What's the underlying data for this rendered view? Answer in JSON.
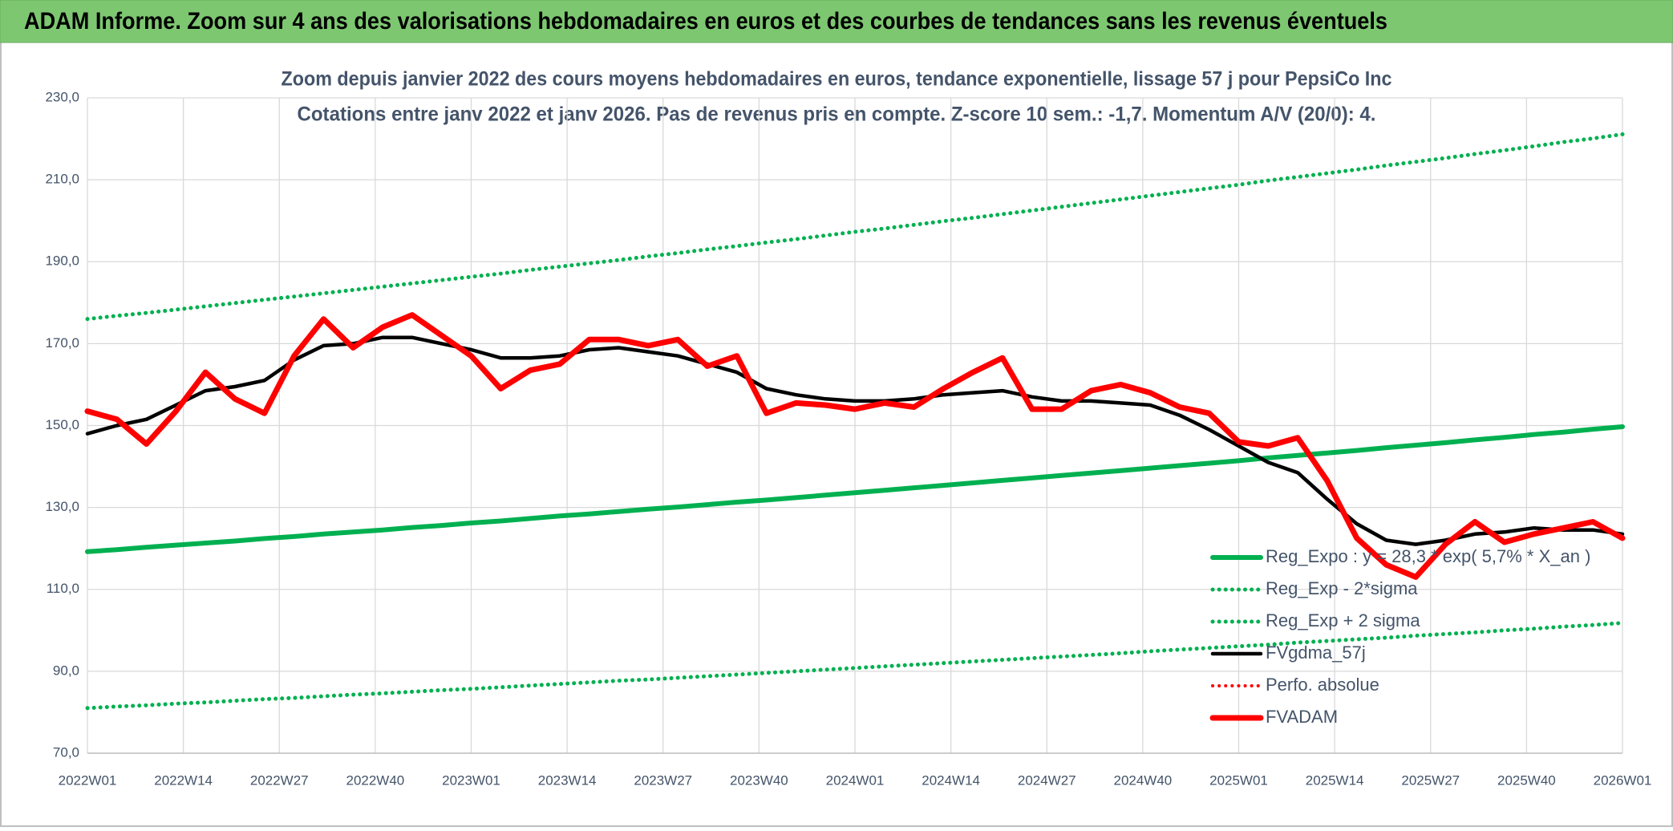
{
  "chart_data": {
    "type": "line",
    "header": "ADAM Informe. Zoom sur 4 ans des valorisations hebdomadaires en euros et des courbes de tendances sans les revenus éventuels",
    "title": "Zoom depuis janvier 2022 des cours moyens hebdomadaires en euros, tendance exponentielle, lissage 57 j pour PepsiCo Inc",
    "subtitle": "Cotations entre janv 2022 et janv 2026. Pas de revenus pris en compte. Z-score 10 sem.: -1,7. Momentum A/V (20/0): 4.",
    "x": [
      0,
      4,
      8,
      12,
      16,
      20,
      24,
      28,
      32,
      36,
      40,
      44,
      48,
      52,
      56,
      60,
      64,
      68,
      72,
      76,
      80,
      84,
      88,
      92,
      96,
      100,
      104,
      108,
      112,
      116,
      120,
      124,
      128,
      132,
      136,
      140,
      144,
      148,
      152,
      156,
      160,
      164,
      168,
      172,
      176,
      180,
      184,
      188,
      192,
      196,
      200,
      204,
      208
    ],
    "xlim": [
      0,
      208
    ],
    "xticks": [
      {
        "value": 0,
        "label": "2022W01"
      },
      {
        "value": 13,
        "label": "2022W14"
      },
      {
        "value": 26,
        "label": "2022W27"
      },
      {
        "value": 39,
        "label": "2022W40"
      },
      {
        "value": 52,
        "label": "2023W01"
      },
      {
        "value": 65,
        "label": "2023W14"
      },
      {
        "value": 78,
        "label": "2023W27"
      },
      {
        "value": 91,
        "label": "2023W40"
      },
      {
        "value": 104,
        "label": "2024W01"
      },
      {
        "value": 117,
        "label": "2024W14"
      },
      {
        "value": 130,
        "label": "2024W27"
      },
      {
        "value": 143,
        "label": "2024W40"
      },
      {
        "value": 156,
        "label": "2025W01"
      },
      {
        "value": 169,
        "label": "2025W14"
      },
      {
        "value": 182,
        "label": "2025W27"
      },
      {
        "value": 195,
        "label": "2025W40"
      },
      {
        "value": 208,
        "label": "2026W01"
      }
    ],
    "ylim": [
      70,
      230
    ],
    "yticks": [
      {
        "value": 70,
        "label": "70,0"
      },
      {
        "value": 90,
        "label": "90,0"
      },
      {
        "value": 110,
        "label": "110,0"
      },
      {
        "value": 130,
        "label": "130,0"
      },
      {
        "value": 150,
        "label": "150,0"
      },
      {
        "value": 170,
        "label": "170,0"
      },
      {
        "value": 190,
        "label": "190,0"
      },
      {
        "value": 210,
        "label": "210,0"
      },
      {
        "value": 230,
        "label": "230,0"
      }
    ],
    "grid": true,
    "legend": "bottom-right",
    "series": [
      {
        "name": "Reg_Expo : y = 28,3 * exp( 5,7% *  X_an )",
        "color": "#00b050",
        "style": "solid",
        "values": [
          119.2,
          119.7,
          120.3,
          120.8,
          121.3,
          121.8,
          122.4,
          122.9,
          123.5,
          124.0,
          124.5,
          125.1,
          125.6,
          126.2,
          126.7,
          127.3,
          127.9,
          128.4,
          129.0,
          129.6,
          130.1,
          130.7,
          131.3,
          131.8,
          132.4,
          133.0,
          133.6,
          134.2,
          134.8,
          135.4,
          136.0,
          136.6,
          137.2,
          137.8,
          138.4,
          139.0,
          139.6,
          140.2,
          140.8,
          141.4,
          142.1,
          142.7,
          143.3,
          143.9,
          144.6,
          145.2,
          145.8,
          146.5,
          147.1,
          147.8,
          148.4,
          149.1,
          149.7
        ]
      },
      {
        "name": "Reg_Exp - 2*sigma",
        "color": "#00b050",
        "style": "dotted",
        "values": [
          81.0,
          81.4,
          81.7,
          82.1,
          82.4,
          82.8,
          83.2,
          83.5,
          83.9,
          84.3,
          84.6,
          85.0,
          85.4,
          85.7,
          86.1,
          86.5,
          86.9,
          87.3,
          87.7,
          88.0,
          88.4,
          88.8,
          89.2,
          89.6,
          90.0,
          90.4,
          90.8,
          91.2,
          91.6,
          92.0,
          92.4,
          92.8,
          93.2,
          93.6,
          94.0,
          94.4,
          94.9,
          95.3,
          95.7,
          96.1,
          96.5,
          97.0,
          97.4,
          97.8,
          98.2,
          98.7,
          99.1,
          99.5,
          100.0,
          100.4,
          100.9,
          101.3,
          101.8
        ]
      },
      {
        "name": "Reg_Exp + 2 sigma",
        "color": "#00b050",
        "style": "dotted",
        "values": [
          176.0,
          176.8,
          177.5,
          178.3,
          179.1,
          179.9,
          180.7,
          181.5,
          182.3,
          183.1,
          183.9,
          184.7,
          185.5,
          186.3,
          187.1,
          188.0,
          188.8,
          189.6,
          190.4,
          191.3,
          192.1,
          193.0,
          193.8,
          194.7,
          195.5,
          196.4,
          197.3,
          198.1,
          199.0,
          199.9,
          200.7,
          201.6,
          202.5,
          203.4,
          204.3,
          205.2,
          206.1,
          207.0,
          207.9,
          208.8,
          209.8,
          210.7,
          211.6,
          212.5,
          213.5,
          214.4,
          215.3,
          216.3,
          217.2,
          218.2,
          219.2,
          220.1,
          221.1
        ]
      },
      {
        "name": "FVgdma_57j",
        "color": "#000000",
        "style": "solid",
        "values": [
          148,
          150,
          151.5,
          155,
          158.5,
          159.5,
          161,
          166,
          169.5,
          170,
          171.5,
          171.5,
          170,
          168.5,
          166.5,
          166.5,
          167,
          168.5,
          169,
          168,
          167,
          165,
          163,
          159,
          157.5,
          156.5,
          156,
          156,
          156.5,
          157.5,
          158,
          158.5,
          157,
          156,
          156,
          155.5,
          155,
          152.5,
          149,
          145,
          141,
          138.5,
          132,
          126,
          122,
          121,
          122,
          123.5,
          124,
          125,
          124.5,
          124.5,
          123.5
        ]
      },
      {
        "name": "Perfo. absolue",
        "color": "#ff0000",
        "style": "dotted",
        "values": [
          null,
          null,
          null,
          null,
          null,
          null,
          null,
          null,
          null,
          null,
          null,
          null,
          null,
          null,
          null,
          null,
          null,
          null,
          null,
          null,
          null,
          null,
          null,
          null,
          null,
          null,
          null,
          null,
          null,
          null,
          null,
          null,
          null,
          null,
          null,
          null,
          null,
          null,
          null,
          null,
          null,
          null,
          null,
          null,
          null,
          null,
          null,
          null,
          null,
          null,
          null,
          null,
          null
        ]
      },
      {
        "name": "FVADAM",
        "color": "#ff0000",
        "style": "solid",
        "values": [
          153.5,
          151.5,
          145.5,
          153.5,
          163,
          156.5,
          153,
          167,
          176,
          169,
          174,
          177,
          172,
          167,
          159,
          163.5,
          165,
          171,
          171,
          169.5,
          171,
          164.5,
          167,
          153,
          155.5,
          155,
          154,
          155.5,
          154.5,
          159,
          163,
          166.5,
          154,
          154,
          158.5,
          160,
          158,
          154.5,
          153,
          146,
          145,
          147,
          136.5,
          122.5,
          116,
          113,
          121,
          126.5,
          121.5,
          123.5,
          125,
          126.5,
          122.5
        ]
      }
    ]
  }
}
